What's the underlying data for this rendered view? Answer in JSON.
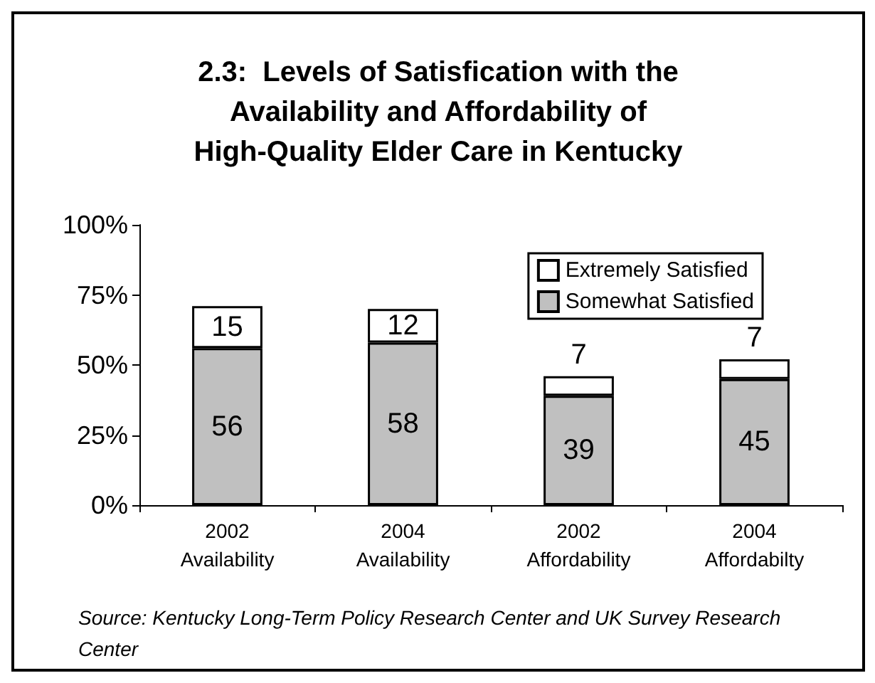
{
  "chart_data": {
    "type": "bar",
    "stacked": true,
    "title": "2.3:  Levels of Satisfication with the\nAvailability and Affordability of\nHigh-Quality Elder Care in Kentucky",
    "categories": [
      "2002\nAvailability",
      "2004\nAvailability",
      "2002\nAffordability",
      "2004\nAffordabilty"
    ],
    "series": [
      {
        "name": "Somewhat Satisfied",
        "color": "#c0c0c0",
        "values": [
          56,
          58,
          39,
          45
        ]
      },
      {
        "name": "Extremely Satisfied",
        "color": "#ffffff",
        "values": [
          15,
          12,
          7,
          7
        ]
      }
    ],
    "ylim": [
      0,
      100
    ],
    "yticks": [
      {
        "value": 0,
        "label": "0%"
      },
      {
        "value": 25,
        "label": "25%"
      },
      {
        "value": 50,
        "label": "50%"
      },
      {
        "value": 75,
        "label": "75%"
      },
      {
        "value": 100,
        "label": "100%"
      }
    ],
    "grid": false,
    "legend": "top right",
    "data_labels": true,
    "annotations": [
      "Source: Kentucky Long-Term Policy Research Center and UK Survey Research Center"
    ]
  }
}
